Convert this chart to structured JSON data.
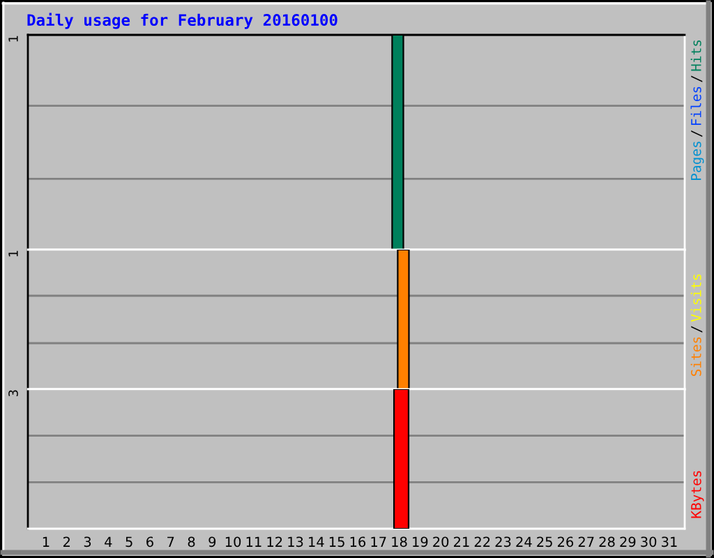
{
  "chart_data": [
    {
      "type": "bar",
      "title": "Daily usage for February 20160100",
      "categories": [
        "1",
        "2",
        "3",
        "4",
        "5",
        "6",
        "7",
        "8",
        "9",
        "10",
        "11",
        "12",
        "13",
        "14",
        "15",
        "16",
        "17",
        "18",
        "19",
        "20",
        "21",
        "22",
        "23",
        "24",
        "25",
        "26",
        "27",
        "28",
        "29",
        "30",
        "31"
      ],
      "series": [
        {
          "name": "Hits",
          "color": "#00805c",
          "values": [
            null,
            null,
            null,
            null,
            null,
            null,
            null,
            null,
            null,
            null,
            null,
            null,
            null,
            null,
            null,
            null,
            null,
            1,
            null,
            null,
            null,
            null,
            null,
            null,
            null,
            null,
            null,
            null,
            null,
            null,
            null
          ]
        },
        {
          "name": "Files",
          "color": "#0040ff",
          "values": [
            null,
            null,
            null,
            null,
            null,
            null,
            null,
            null,
            null,
            null,
            null,
            null,
            null,
            null,
            null,
            null,
            null,
            null,
            null,
            null,
            null,
            null,
            null,
            null,
            null,
            null,
            null,
            null,
            null,
            null,
            null
          ]
        },
        {
          "name": "Pages",
          "color": "#0090d0",
          "values": [
            null,
            null,
            null,
            null,
            null,
            null,
            null,
            null,
            null,
            null,
            null,
            null,
            null,
            null,
            null,
            null,
            null,
            null,
            null,
            null,
            null,
            null,
            null,
            null,
            null,
            null,
            null,
            null,
            null,
            null,
            null
          ]
        }
      ],
      "ylim": [
        0,
        1
      ],
      "yticks": [
        {
          "value": 0.33,
          "label": null
        },
        {
          "value": 0.67,
          "label": null
        },
        1
      ],
      "grid": "y",
      "legend": "right",
      "tick_labels": "y",
      "annotations": [
        "/",
        "/"
      ]
    },
    {
      "type": "bar",
      "categories": [
        "1",
        "2",
        "3",
        "4",
        "5",
        "6",
        "7",
        "8",
        "9",
        "10",
        "11",
        "12",
        "13",
        "14",
        "15",
        "16",
        "17",
        "18",
        "19",
        "20",
        "21",
        "22",
        "23",
        "24",
        "25",
        "26",
        "27",
        "28",
        "29",
        "30",
        "31"
      ],
      "series": [
        {
          "name": "Visits",
          "color": "#ffff00",
          "values": [
            null,
            null,
            null,
            null,
            null,
            null,
            null,
            null,
            null,
            null,
            null,
            null,
            null,
            null,
            null,
            null,
            null,
            null,
            null,
            null,
            null,
            null,
            null,
            null,
            null,
            null,
            null,
            null,
            null,
            null,
            null
          ]
        },
        {
          "name": "Sites",
          "color": "#ff8000",
          "values": [
            null,
            null,
            null,
            null,
            null,
            null,
            null,
            null,
            null,
            null,
            null,
            null,
            null,
            null,
            null,
            null,
            null,
            1,
            null,
            null,
            null,
            null,
            null,
            null,
            null,
            null,
            null,
            null,
            null,
            null,
            null
          ]
        }
      ],
      "ylim": [
        0,
        1
      ],
      "yticks": [
        {
          "value": 0.33,
          "label": null
        },
        {
          "value": 0.67,
          "label": null
        },
        1
      ],
      "grid": "y",
      "legend": "right",
      "tick_labels": "y",
      "annotations": [
        "/"
      ]
    },
    {
      "type": "bar",
      "categories": [
        "1",
        "2",
        "3",
        "4",
        "5",
        "6",
        "7",
        "8",
        "9",
        "10",
        "11",
        "12",
        "13",
        "14",
        "15",
        "16",
        "17",
        "18",
        "19",
        "20",
        "21",
        "22",
        "23",
        "24",
        "25",
        "26",
        "27",
        "28",
        "29",
        "30",
        "31"
      ],
      "series": [
        {
          "name": "KBytes",
          "color": "#ff0000",
          "values": [
            null,
            null,
            null,
            null,
            null,
            null,
            null,
            null,
            null,
            null,
            null,
            null,
            null,
            null,
            null,
            null,
            null,
            3,
            null,
            null,
            null,
            null,
            null,
            null,
            null,
            null,
            null,
            null,
            null,
            null,
            null
          ]
        }
      ],
      "ylim": [
        0,
        3
      ],
      "yticks": [
        {
          "value": 1,
          "label": null
        },
        {
          "value": 2,
          "label": null
        },
        3
      ],
      "grid": "y",
      "legend": "right"
    }
  ]
}
